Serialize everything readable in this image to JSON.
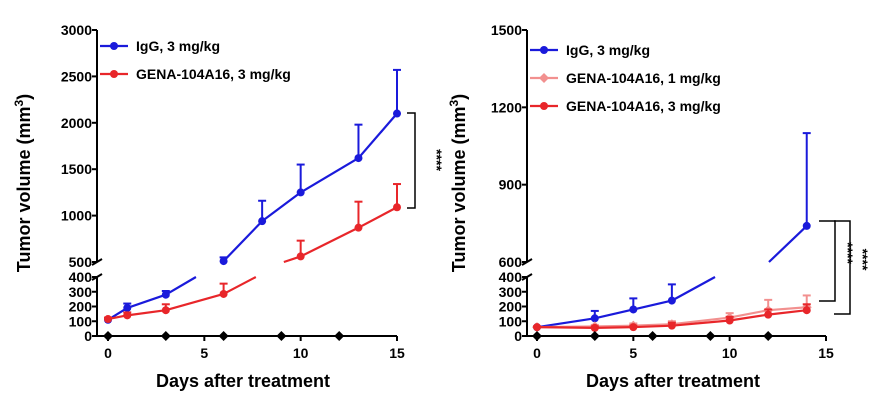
{
  "chart_data": [
    {
      "type": "line",
      "panel": "left",
      "xlabel": "Days after treatment",
      "ylabel": "Tumor volume (mm",
      "ylabel_sup": "3",
      "ylabel_close": ")",
      "xlim": [
        0,
        15
      ],
      "x_ticks": [
        "0",
        "5",
        "10",
        "15"
      ],
      "y_lower_ticks": [
        "0",
        "100",
        "200",
        "300",
        "400"
      ],
      "y_upper_ticks": [
        "500",
        "1000",
        "1500",
        "2000",
        "2500",
        "3000"
      ],
      "y_lower_range": [
        0,
        400
      ],
      "y_upper_range": [
        500,
        3000
      ],
      "dosing_days": [
        0,
        3,
        6,
        9,
        12
      ],
      "significance": "****",
      "series": [
        {
          "name": "IgG, 3 mg/kg",
          "color": "#1a1adb",
          "marker": "circle",
          "x": [
            0,
            1,
            3,
            6,
            8,
            10,
            13,
            15
          ],
          "y": [
            110,
            190,
            280,
            510,
            940,
            1250,
            1620,
            2100
          ],
          "err": [
            10,
            30,
            25,
            40,
            220,
            300,
            360,
            470
          ]
        },
        {
          "name": "GENA-104A16, 3 mg/kg",
          "color": "#e8262a",
          "marker": "circle",
          "x": [
            0,
            1,
            3,
            6,
            10,
            13,
            15
          ],
          "y": [
            115,
            140,
            175,
            285,
            560,
            870,
            1090
          ],
          "err": [
            10,
            20,
            40,
            70,
            170,
            280,
            250
          ]
        }
      ]
    },
    {
      "type": "line",
      "panel": "right",
      "xlabel": "Days after treatment",
      "ylabel": "Tumor volume (mm",
      "ylabel_sup": "3",
      "ylabel_close": ")",
      "xlim": [
        0,
        15
      ],
      "x_ticks": [
        "0",
        "5",
        "10",
        "15"
      ],
      "y_lower_ticks": [
        "0",
        "100",
        "200",
        "300",
        "400"
      ],
      "y_upper_ticks": [
        "600",
        "900",
        "1200",
        "1500"
      ],
      "y_lower_range": [
        0,
        400
      ],
      "y_upper_range": [
        600,
        1500
      ],
      "dosing_days": [
        0,
        3,
        6,
        9,
        12
      ],
      "significance": [
        "****",
        "****"
      ],
      "series": [
        {
          "name": "IgG, 3 mg/kg",
          "color": "#1a1adb",
          "marker": "circle",
          "x": [
            0,
            3,
            5,
            7,
            14
          ],
          "y": [
            60,
            120,
            180,
            240,
            740
          ],
          "err": [
            5,
            50,
            75,
            110,
            360
          ]
        },
        {
          "name": "GENA-104A16, 1 mg/kg",
          "color": "#f2908f",
          "marker": "diamond",
          "x": [
            0,
            3,
            5,
            7,
            10,
            12,
            14
          ],
          "y": [
            60,
            65,
            70,
            80,
            125,
            175,
            195
          ],
          "err": [
            5,
            10,
            15,
            20,
            30,
            70,
            80
          ]
        },
        {
          "name": "GENA-104A16, 3 mg/kg",
          "color": "#e8262a",
          "marker": "circle",
          "x": [
            0,
            3,
            5,
            7,
            10,
            12,
            14
          ],
          "y": [
            60,
            55,
            60,
            70,
            105,
            145,
            175
          ],
          "err": [
            5,
            10,
            10,
            20,
            25,
            35,
            40
          ]
        }
      ]
    }
  ]
}
